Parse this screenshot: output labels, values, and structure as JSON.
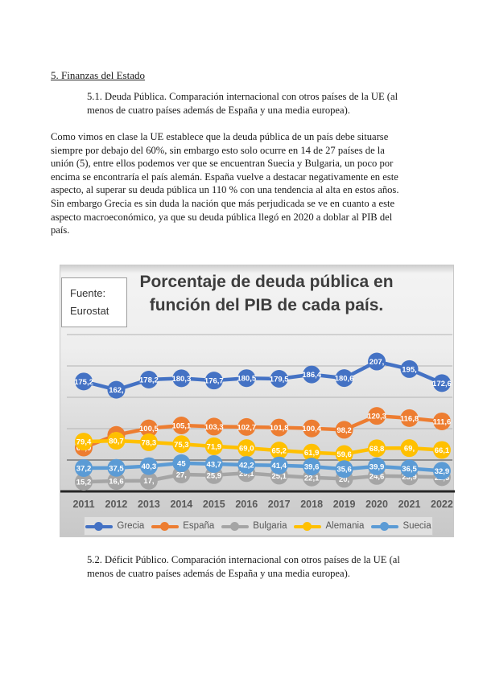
{
  "page": {
    "heading": "5. Finanzas del Estado",
    "section_5_1_lines": [
      "5.1. Deuda Pública. Comparación internacional con otros países de la UE (al",
      "menos de cuatro países además de España y una media europea)."
    ],
    "paragraph_lines": [
      "Como vimos en clase la UE  establece que la deuda pública de un país debe situarse",
      "siempre por debajo del 60%, sin embargo esto solo ocurre en 14 de 27 países de la",
      "unión (5), entre ellos podemos ver que se encuentran Suecia y Bulgaria, un poco por",
      "encima se encontraría el país alemán. España vuelve a destacar negativamente en este",
      "aspecto, al superar su deuda pública un 110 % con una tendencia al alta en estos años.",
      "Sin embargo Grecia es sin duda la nación que más perjudicada se ve en cuanto a este",
      "aspecto macroeconómico, ya que su deuda pública llegó en 2020 a doblar al PIB del",
      "país."
    ],
    "section_5_2_lines": [
      "5.2. Déficit Público. Comparación internacional con otros países de la UE (al",
      "menos de cuatro países además de España y una media europea)."
    ]
  },
  "chart_data": {
    "type": "line",
    "title": "Porcentaje de deuda pública en función del PIB de cada país.",
    "title_lines": [
      "Porcentaje de deuda pública en",
      "función del PIB de cada país."
    ],
    "source": "Fuente: Eurostat",
    "source_lines": [
      "Fuente:",
      "Eurostat"
    ],
    "categories": [
      "2011",
      "2012",
      "2013",
      "2014",
      "2015",
      "2016",
      "2017",
      "2018",
      "2019",
      "2020",
      "2021",
      "2022"
    ],
    "series": [
      {
        "name": "Grecia",
        "color": "#4472C4",
        "values": [
          175.2,
          162,
          178.2,
          180.3,
          176.7,
          180.5,
          179.5,
          186.4,
          180.6,
          207,
          195,
          172.6
        ],
        "labels": [
          "175,2",
          "162,",
          "178,2",
          "180,3",
          "176,7",
          "180,5",
          "179,5",
          "186,4",
          "180,6",
          "207,",
          "195,",
          "172,6"
        ]
      },
      {
        "name": "España",
        "color": "#ED7D31",
        "values": [
          69.9,
          90,
          100.5,
          105.1,
          103.3,
          102.7,
          101.8,
          100.4,
          98.2,
          120.3,
          116.8,
          111.6
        ],
        "labels": [
          "69,9",
          "90,",
          "100,5",
          "105,1",
          "103,3",
          "102,7",
          "101,8",
          "100,4",
          "98,2",
          "120,3",
          "116,8",
          "111,6"
        ]
      },
      {
        "name": "Bulgaria",
        "color": "#A5A5A5",
        "values": [
          15.2,
          16.6,
          17,
          27,
          25.9,
          29.1,
          25.1,
          22.1,
          20,
          24.6,
          23.9,
          22.6
        ],
        "labels": [
          "15,2",
          "16,6",
          "17,",
          "27,",
          "25,9",
          "29,1",
          "25,1",
          "22,1",
          "20,",
          "24,6",
          "23,9",
          "22,6"
        ]
      },
      {
        "name": "Alemania",
        "color": "#FFC000",
        "values": [
          79.4,
          80.7,
          78.3,
          75.3,
          71.9,
          69,
          65.2,
          61.9,
          59.6,
          68.8,
          69,
          66.1
        ],
        "labels": [
          "79,4",
          "80,7",
          "78,3",
          "75,3",
          "71,9",
          "69,0",
          "65,2",
          "61,9",
          "59,6",
          "68,8",
          "69,",
          "66,1"
        ]
      },
      {
        "name": "Suecia",
        "color": "#5B9BD5",
        "values": [
          37.2,
          37.5,
          40.3,
          45,
          43.7,
          42.2,
          41.4,
          39.6,
          35.6,
          39.9,
          36.5,
          32.9
        ],
        "labels": [
          "37,2",
          "37,5",
          "40,3",
          "45",
          "43,7",
          "42,2",
          "41,4",
          "39,6",
          "35,6",
          "39,9",
          "36,5",
          "32,9"
        ]
      }
    ],
    "xlabel": "",
    "ylabel": "",
    "ylim": [
      0,
      250
    ],
    "gridline_interval": 50,
    "grid": true,
    "legend_position": "bottom",
    "data_label_position": "center",
    "axis_color": "#262626",
    "tick_label_color": "#595959"
  }
}
